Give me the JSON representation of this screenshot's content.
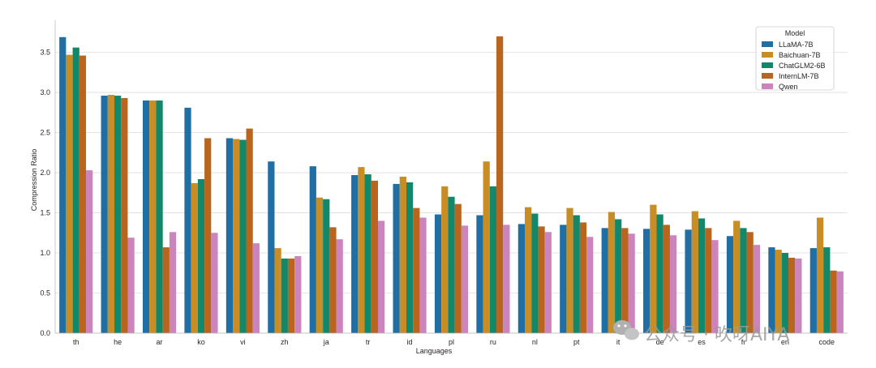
{
  "chart_data": {
    "type": "bar",
    "xlabel": "Languages",
    "ylabel": "Compression Ratio",
    "ylim": [
      0,
      3.9
    ],
    "yticks": [
      "0.0",
      "0.5",
      "1.0",
      "1.5",
      "2.0",
      "2.5",
      "3.0",
      "3.5"
    ],
    "grid": "horizontal",
    "legend": {
      "title": "Model",
      "placement": "top-right"
    },
    "categories": [
      "th",
      "he",
      "ar",
      "ko",
      "vi",
      "zh",
      "ja",
      "tr",
      "id",
      "pl",
      "ru",
      "nl",
      "pt",
      "it",
      "de",
      "es",
      "fr",
      "en",
      "code"
    ],
    "series": [
      {
        "name": "LLaMA-7B",
        "color": "#1f6fa5",
        "values": [
          3.69,
          2.96,
          2.9,
          2.81,
          2.43,
          2.14,
          2.08,
          1.97,
          1.86,
          1.48,
          1.47,
          1.36,
          1.35,
          1.31,
          1.3,
          1.29,
          1.21,
          1.07,
          1.06
        ]
      },
      {
        "name": "Baichuan-7B",
        "color": "#c98d26",
        "values": [
          3.47,
          2.97,
          2.9,
          1.87,
          2.42,
          1.06,
          1.69,
          2.07,
          1.95,
          1.83,
          2.14,
          1.57,
          1.56,
          1.51,
          1.6,
          1.52,
          1.4,
          1.04,
          1.44
        ]
      },
      {
        "name": "ChatGLM2-6B",
        "color": "#13876a",
        "values": [
          3.56,
          2.96,
          2.9,
          1.92,
          2.41,
          0.93,
          1.67,
          1.98,
          1.88,
          1.7,
          1.83,
          1.49,
          1.47,
          1.42,
          1.48,
          1.43,
          1.31,
          1.0,
          1.07
        ]
      },
      {
        "name": "InternLM-7B",
        "color": "#b9651d",
        "values": [
          3.46,
          2.93,
          1.07,
          2.43,
          2.55,
          0.93,
          1.32,
          1.9,
          1.56,
          1.61,
          3.7,
          1.33,
          1.38,
          1.31,
          1.35,
          1.31,
          1.26,
          0.94,
          0.78
        ]
      },
      {
        "name": "Qwen",
        "color": "#cc84bd",
        "values": [
          2.03,
          1.19,
          1.26,
          1.25,
          1.12,
          0.96,
          1.17,
          1.4,
          1.44,
          1.34,
          1.35,
          1.26,
          1.2,
          1.24,
          1.22,
          1.16,
          1.1,
          0.93,
          0.77
        ]
      }
    ]
  },
  "watermark": {
    "text": "公众号 · 吹呀AIYA",
    "icon": "wechat-icon"
  }
}
